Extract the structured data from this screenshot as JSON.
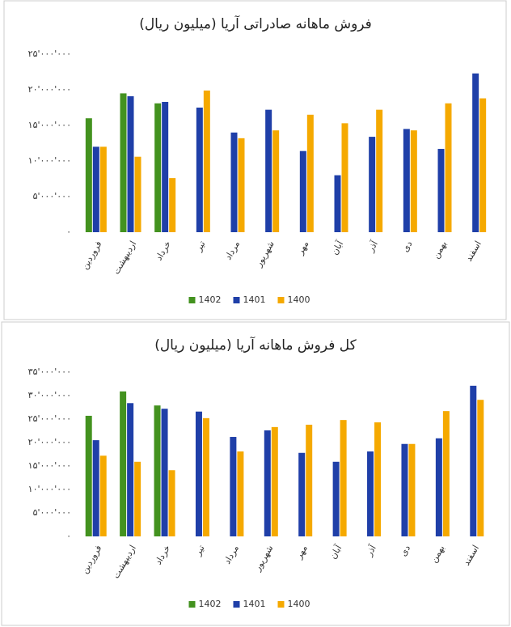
{
  "chart_data": [
    {
      "type": "bar",
      "title": "فروش ماهانه صادراتی آریا (میلیون ریال)",
      "categories": [
        "فروردین",
        "اردیبهشت",
        "خرداد",
        "تیر",
        "مرداد",
        "شهریور",
        "مهر",
        "آبان",
        "آذر",
        "دی",
        "بهمن",
        "اسفند"
      ],
      "series": [
        {
          "name": "1402",
          "color": "#43921f",
          "values": [
            16000000,
            19500000,
            18100000,
            null,
            null,
            null,
            null,
            null,
            null,
            null,
            null,
            null
          ]
        },
        {
          "name": "1401",
          "color": "#1f3fa8",
          "values": [
            12000000,
            19100000,
            18300000,
            17500000,
            14000000,
            17200000,
            11400000,
            8000000,
            13400000,
            14500000,
            11700000,
            22300000
          ]
        },
        {
          "name": "1400",
          "color": "#f5a900",
          "values": [
            12000000,
            10600000,
            7600000,
            19900000,
            13200000,
            14300000,
            16500000,
            15300000,
            17200000,
            14300000,
            18100000,
            18800000
          ]
        }
      ],
      "ylim": [
        0,
        25000000
      ],
      "yticks": [
        {
          "value": 0,
          "label": "۰"
        },
        {
          "value": 5000000,
          "label": "۵'۰۰۰'۰۰۰"
        },
        {
          "value": 10000000,
          "label": "۱۰'۰۰۰'۰۰۰"
        },
        {
          "value": 15000000,
          "label": "۱۵'۰۰۰'۰۰۰"
        },
        {
          "value": 20000000,
          "label": "۲۰'۰۰۰'۰۰۰"
        },
        {
          "value": 25000000,
          "label": "۲۵'۰۰۰'۰۰۰"
        }
      ],
      "grid": false,
      "legend": "bottom"
    },
    {
      "type": "bar",
      "title": "کل فروش ماهانه آریا (میلیون ریال)",
      "categories": [
        "فروردین",
        "اردیبهشت",
        "خرداد",
        "تیر",
        "مرداد",
        "شهریور",
        "مهر",
        "آبان",
        "آذر",
        "دی",
        "بهمن",
        "اسفند"
      ],
      "series": [
        {
          "name": "1402",
          "color": "#43921f",
          "values": [
            25700000,
            30900000,
            27900000,
            null,
            null,
            null,
            null,
            null,
            null,
            null,
            null,
            null
          ]
        },
        {
          "name": "1401",
          "color": "#1f3fa8",
          "values": [
            20500000,
            28400000,
            27200000,
            26600000,
            21200000,
            22600000,
            17800000,
            15900000,
            18100000,
            19700000,
            20900000,
            32100000
          ]
        },
        {
          "name": "1400",
          "color": "#f5a900",
          "values": [
            17200000,
            15900000,
            14100000,
            25200000,
            18100000,
            23300000,
            23800000,
            24800000,
            24300000,
            19700000,
            26700000,
            29100000
          ]
        }
      ],
      "ylim": [
        0,
        35000000
      ],
      "yticks": [
        {
          "value": 0,
          "label": "۰"
        },
        {
          "value": 5000000,
          "label": "۵'۰۰۰'۰۰۰"
        },
        {
          "value": 10000000,
          "label": "۱۰'۰۰۰'۰۰۰"
        },
        {
          "value": 15000000,
          "label": "۱۵'۰۰۰'۰۰۰"
        },
        {
          "value": 20000000,
          "label": "۲۰'۰۰۰'۰۰۰"
        },
        {
          "value": 25000000,
          "label": "۲۵'۰۰۰'۰۰۰"
        },
        {
          "value": 30000000,
          "label": "۳۰'۰۰۰'۰۰۰"
        },
        {
          "value": 35000000,
          "label": "۳۵'۰۰۰'۰۰۰"
        }
      ],
      "grid": false,
      "legend": "bottom"
    }
  ]
}
